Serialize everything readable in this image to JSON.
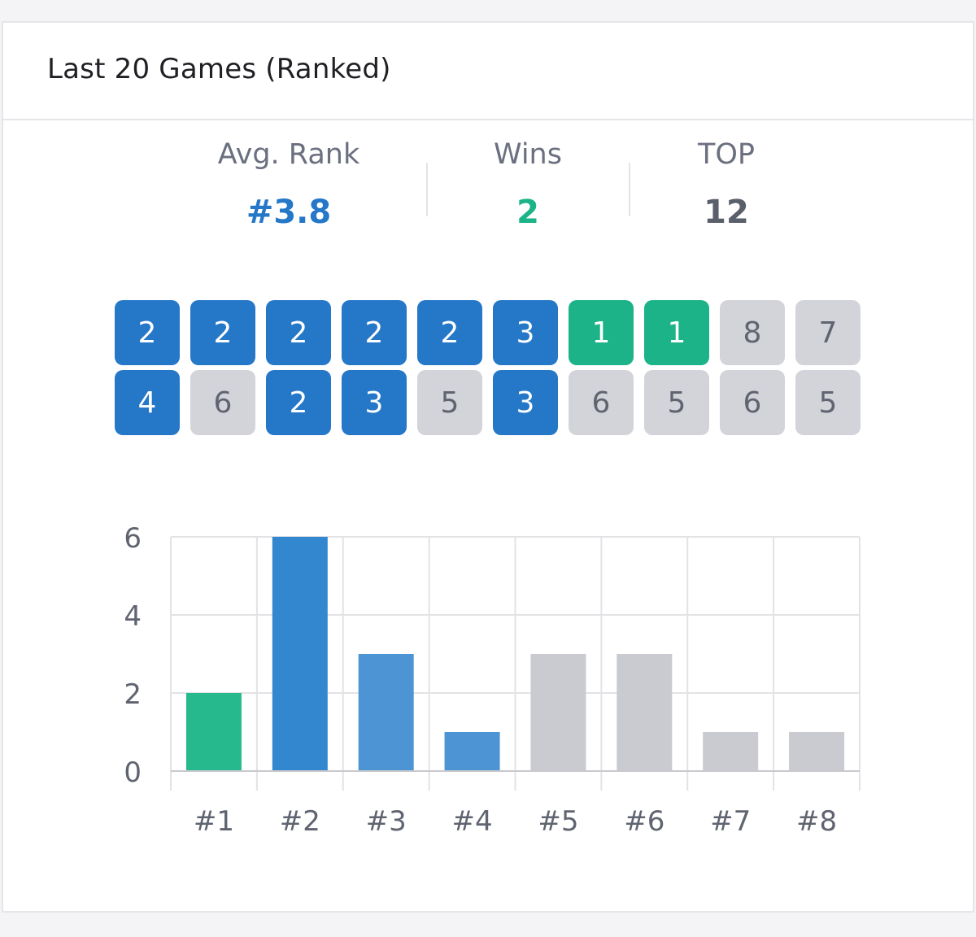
{
  "header": {
    "title": "Last 20 Games (Ranked)"
  },
  "stats": [
    {
      "label": "Avg. Rank",
      "value": "#3.8",
      "color": "#2577c8"
    },
    {
      "label": "Wins",
      "value": "2",
      "color": "#1bb387"
    },
    {
      "label": "TOP",
      "value": "12",
      "color": "#5a5f6c"
    }
  ],
  "colors": {
    "win": "#1bb387",
    "top": "#2577c8",
    "low": "#d3d4d9",
    "low_text": "#5f6470",
    "bar_win": "#26b98d",
    "bar_top_strong": "#3387cf",
    "bar_top": "#4c94d3",
    "bar_low": "#c9cbd1"
  },
  "recent_ranks": [
    2,
    2,
    2,
    2,
    2,
    3,
    1,
    1,
    8,
    7,
    4,
    6,
    2,
    3,
    5,
    3,
    6,
    5,
    6,
    5
  ],
  "chart_data": {
    "type": "bar",
    "categories": [
      "#1",
      "#2",
      "#3",
      "#4",
      "#5",
      "#6",
      "#7",
      "#8"
    ],
    "values": [
      2,
      6,
      3,
      1,
      3,
      3,
      1,
      1
    ],
    "ylim": [
      0,
      6
    ],
    "yticks": [
      "0",
      "2",
      "4",
      "6"
    ],
    "grid": true,
    "title": "",
    "xlabel": "",
    "ylabel": ""
  }
}
